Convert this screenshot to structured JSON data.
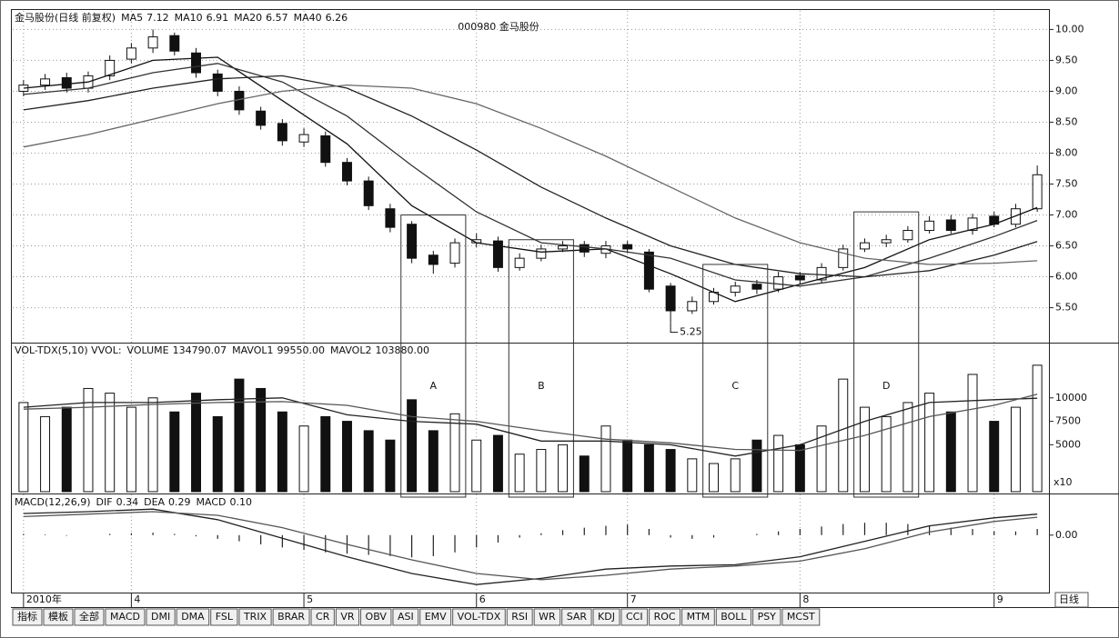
{
  "title": "000980 金马股份",
  "date_axis": {
    "xlim": [
      -0.5,
      47.5
    ],
    "ticks": [
      {
        "value": 0,
        "label": "2010年"
      },
      {
        "value": 5,
        "label": "4"
      },
      {
        "value": 13,
        "label": "5"
      },
      {
        "value": 21,
        "label": "6"
      },
      {
        "value": 28,
        "label": "7"
      },
      {
        "value": 36,
        "label": "8"
      },
      {
        "value": 45,
        "label": "9"
      }
    ]
  },
  "chart_data": [
    {
      "type": "candlestick",
      "header": "金马股份(日线 前复权)",
      "open": [
        9.0,
        9.1,
        9.22,
        9.05,
        9.25,
        9.52,
        9.7,
        9.9,
        9.62,
        9.28,
        9.0,
        8.68,
        8.48,
        8.18,
        8.28,
        7.85,
        7.55,
        7.1,
        6.85,
        6.35,
        6.22,
        6.55,
        6.58,
        6.15,
        6.3,
        6.45,
        6.52,
        6.38,
        6.52,
        6.4,
        5.85,
        5.45,
        5.6,
        5.75,
        5.88,
        5.8,
        6.02,
        5.95,
        6.15,
        6.45,
        6.55,
        6.6,
        6.75,
        6.92,
        6.75,
        6.98,
        6.85,
        7.1
      ],
      "high": [
        9.18,
        9.28,
        9.3,
        9.32,
        9.58,
        9.78,
        10.0,
        9.95,
        9.7,
        9.35,
        9.08,
        8.75,
        8.55,
        8.4,
        8.35,
        7.92,
        7.62,
        7.18,
        6.9,
        6.42,
        6.62,
        6.7,
        6.65,
        6.38,
        6.52,
        6.58,
        6.58,
        6.58,
        6.58,
        6.45,
        5.9,
        5.68,
        5.82,
        5.92,
        5.95,
        6.08,
        6.08,
        6.22,
        6.52,
        6.62,
        6.68,
        6.82,
        6.98,
        7.0,
        7.02,
        7.05,
        7.18,
        7.8
      ],
      "low": [
        8.92,
        9.02,
        8.98,
        8.98,
        9.18,
        9.45,
        9.62,
        9.58,
        9.22,
        8.92,
        8.62,
        8.38,
        8.12,
        8.1,
        7.78,
        7.48,
        7.08,
        6.72,
        6.22,
        6.05,
        6.15,
        6.48,
        6.08,
        6.1,
        6.25,
        6.4,
        6.32,
        6.3,
        6.38,
        5.75,
        5.25,
        5.4,
        5.55,
        5.68,
        5.72,
        5.75,
        5.88,
        5.9,
        6.1,
        6.4,
        6.48,
        6.55,
        6.7,
        6.7,
        6.68,
        6.8,
        6.8,
        7.05
      ],
      "close": [
        9.1,
        9.2,
        9.05,
        9.25,
        9.5,
        9.7,
        9.88,
        9.65,
        9.3,
        9.0,
        8.7,
        8.45,
        8.2,
        8.3,
        7.85,
        7.55,
        7.15,
        6.8,
        6.3,
        6.2,
        6.55,
        6.6,
        6.15,
        6.3,
        6.45,
        6.5,
        6.4,
        6.5,
        6.45,
        5.8,
        5.45,
        5.6,
        5.75,
        5.85,
        5.8,
        6.0,
        5.95,
        6.15,
        6.45,
        6.55,
        6.6,
        6.75,
        6.9,
        6.75,
        6.95,
        6.85,
        7.1,
        7.65
      ],
      "up_color": "#ffffff",
      "down_color": "#111111",
      "series": [
        {
          "name": "MA5",
          "last": "7.12",
          "color": "#111111",
          "x": [
            0,
            3,
            6,
            9,
            12,
            15,
            18,
            21,
            24,
            27,
            30,
            33,
            36,
            39,
            42,
            45,
            47
          ],
          "values": [
            9.05,
            9.15,
            9.5,
            9.55,
            8.85,
            8.15,
            7.15,
            6.55,
            6.4,
            6.45,
            6.05,
            5.6,
            5.88,
            6.15,
            6.6,
            6.85,
            7.12
          ]
        },
        {
          "name": "MA10",
          "last": "6.91",
          "color": "#333333",
          "x": [
            0,
            3,
            6,
            9,
            12,
            15,
            18,
            21,
            24,
            27,
            30,
            33,
            36,
            39,
            42,
            45,
            47
          ],
          "values": [
            8.95,
            9.05,
            9.3,
            9.45,
            9.15,
            8.6,
            7.8,
            7.05,
            6.55,
            6.45,
            6.3,
            5.95,
            5.85,
            6.0,
            6.3,
            6.65,
            6.91
          ]
        },
        {
          "name": "MA20",
          "last": "6.57",
          "color": "#222222",
          "x": [
            0,
            3,
            6,
            9,
            12,
            15,
            18,
            21,
            24,
            27,
            30,
            33,
            36,
            39,
            42,
            45,
            47
          ],
          "values": [
            8.7,
            8.85,
            9.05,
            9.2,
            9.25,
            9.05,
            8.6,
            8.05,
            7.45,
            6.95,
            6.5,
            6.2,
            6.05,
            6.0,
            6.1,
            6.35,
            6.57
          ]
        },
        {
          "name": "MA40",
          "last": "6.26",
          "color": "#666666",
          "x": [
            0,
            3,
            6,
            9,
            12,
            15,
            18,
            21,
            24,
            27,
            30,
            33,
            36,
            39,
            42,
            45,
            47
          ],
          "values": [
            8.1,
            8.3,
            8.55,
            8.8,
            9.0,
            9.1,
            9.05,
            8.8,
            8.4,
            7.95,
            7.45,
            6.95,
            6.55,
            6.3,
            6.2,
            6.22,
            6.26
          ]
        }
      ],
      "ylim": [
        4.95,
        10.3
      ],
      "yticks": [
        {
          "value": 5.5,
          "label": "5.50"
        },
        {
          "value": 6,
          "label": "6.00"
        },
        {
          "value": 6.5,
          "label": "6.50"
        },
        {
          "value": 7,
          "label": "7.00"
        },
        {
          "value": 7.5,
          "label": "7.50"
        },
        {
          "value": 8,
          "label": "8.00"
        },
        {
          "value": 8.5,
          "label": "8.50"
        },
        {
          "value": 9,
          "label": "9.00"
        },
        {
          "value": 9.5,
          "label": "9.50"
        },
        {
          "value": 10,
          "label": "10.00"
        }
      ],
      "grid": true,
      "annotations": [
        {
          "text": "5.25",
          "x": 30,
          "y": 5.25
        }
      ],
      "boxes": [
        {
          "label": "A",
          "x": [
            17.5,
            20.5
          ],
          "top": 7.0
        },
        {
          "label": "B",
          "x": [
            22.5,
            25.5
          ],
          "top": 6.6
        },
        {
          "label": "C",
          "x": [
            31.5,
            34.5
          ],
          "top": 6.2
        },
        {
          "label": "D",
          "x": [
            38.5,
            41.5
          ],
          "top": 7.05
        }
      ]
    },
    {
      "type": "bar",
      "header": "VOL-TDX(5,10) VVOL:",
      "bars": {
        "name": "VOLUME",
        "last": "134790.07",
        "values": [
          9500,
          8000,
          9000,
          11000,
          10500,
          9000,
          10000,
          8500,
          10500,
          8000,
          12000,
          11000,
          8500,
          7000,
          8000,
          7500,
          6500,
          5500,
          9800,
          6500,
          8300,
          5500,
          6000,
          4000,
          4500,
          5000,
          3800,
          7000,
          5500,
          5000,
          4500,
          3500,
          3000,
          3500,
          5500,
          6000,
          5000,
          7000,
          12000,
          9000,
          8000,
          9500,
          10500,
          8500,
          12500,
          7500,
          9000,
          13479
        ]
      },
      "series": [
        {
          "name": "MAVOL1",
          "last": "99550.00",
          "color": "#222222",
          "x": [
            0,
            3,
            6,
            9,
            12,
            15,
            18,
            21,
            24,
            27,
            30,
            33,
            36,
            39,
            42,
            45,
            47
          ],
          "values": [
            9000,
            9500,
            9500,
            9800,
            10000,
            8200,
            7500,
            7200,
            5400,
            5400,
            5000,
            3800,
            5000,
            7500,
            9500,
            9800,
            9955
          ]
        },
        {
          "name": "MAVOL2",
          "last": "103880.00",
          "color": "#555555",
          "x": [
            0,
            3,
            6,
            9,
            12,
            15,
            18,
            21,
            24,
            27,
            30,
            33,
            36,
            39,
            42,
            45,
            47
          ],
          "values": [
            8800,
            9000,
            9300,
            9500,
            9600,
            9200,
            8000,
            7500,
            6500,
            5600,
            5200,
            4500,
            4400,
            6000,
            8000,
            9200,
            10388
          ]
        }
      ],
      "ylim": [
        0,
        15500
      ],
      "yticks": [
        5000,
        7500,
        10000
      ],
      "unit_label": "x10"
    },
    {
      "type": "macd",
      "header": "MACD(12,26,9)",
      "series": [
        {
          "name": "DIF",
          "last": "0.34",
          "color": "#222222",
          "x": [
            0,
            3,
            6,
            9,
            12,
            15,
            18,
            21,
            24,
            27,
            30,
            33,
            36,
            39,
            42,
            45,
            47
          ],
          "values": [
            0.35,
            0.38,
            0.42,
            0.25,
            -0.05,
            -0.35,
            -0.62,
            -0.8,
            -0.7,
            -0.55,
            -0.5,
            -0.48,
            -0.35,
            -0.1,
            0.15,
            0.28,
            0.34
          ]
        },
        {
          "name": "DEA",
          "last": "0.29",
          "color": "#555555",
          "x": [
            0,
            3,
            6,
            9,
            12,
            15,
            18,
            21,
            24,
            27,
            30,
            33,
            36,
            39,
            42,
            45,
            47
          ],
          "values": [
            0.3,
            0.34,
            0.38,
            0.32,
            0.12,
            -0.15,
            -0.4,
            -0.62,
            -0.72,
            -0.65,
            -0.55,
            -0.5,
            -0.42,
            -0.22,
            0.05,
            0.22,
            0.29
          ]
        }
      ],
      "bars": {
        "name": "MACD",
        "last": "0.10",
        "values": [
          0.02,
          0.01,
          -0.01,
          0.0,
          0.02,
          0.03,
          0.04,
          0.02,
          -0.02,
          -0.06,
          -0.1,
          -0.15,
          -0.2,
          -0.24,
          -0.28,
          -0.3,
          -0.32,
          -0.34,
          -0.36,
          -0.34,
          -0.28,
          -0.2,
          -0.12,
          -0.04,
          0.03,
          0.08,
          0.12,
          0.15,
          0.17,
          0.1,
          -0.04,
          -0.06,
          -0.04,
          0.0,
          0.02,
          0.06,
          0.1,
          0.14,
          0.18,
          0.2,
          0.2,
          0.18,
          0.16,
          0.12,
          0.1,
          0.06,
          0.06,
          0.1
        ]
      },
      "ylim": [
        -0.9,
        0.6
      ],
      "yticks": [
        {
          "value": 0,
          "label": "0.00"
        }
      ]
    }
  ],
  "toolbar": [
    "指标",
    "模板",
    "全部",
    "MACD",
    "DMI",
    "DMA",
    "FSL",
    "TRIX",
    "BRAR",
    "CR",
    "VR",
    "OBV",
    "ASI",
    "EMV",
    "VOL-TDX",
    "RSI",
    "WR",
    "SAR",
    "KDJ",
    "CCI",
    "ROC",
    "MTM",
    "BOLL",
    "PSY",
    "MCST"
  ],
  "period": "日线"
}
